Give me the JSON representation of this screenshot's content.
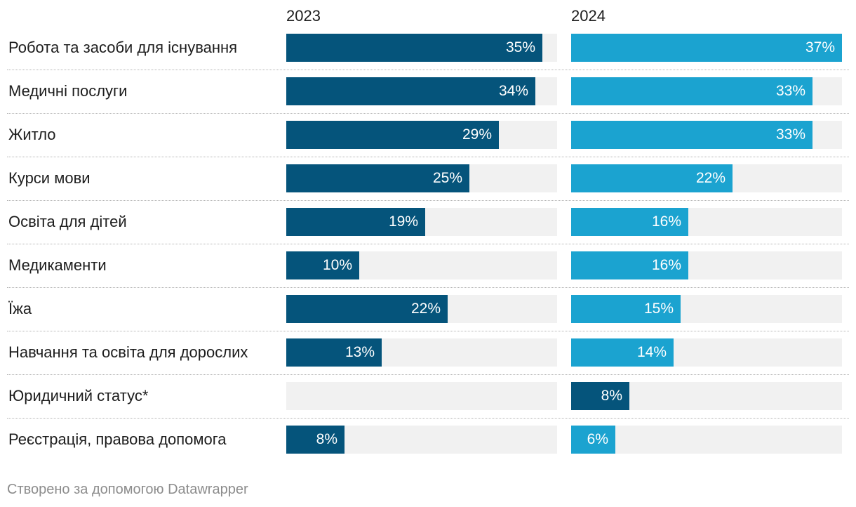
{
  "chart_data": {
    "type": "bar",
    "orientation": "horizontal",
    "categories": [
      "Робота та засоби для існування",
      "Медичні послуги",
      "Житло",
      "Курси мови",
      "Освіта для дітей",
      "Медикаменти",
      "Їжа",
      "Навчання та освіта для дорослих",
      "Юридичний статус*",
      "Реєстрація, правова допомога"
    ],
    "series": [
      {
        "name": "2023",
        "values": [
          35,
          34,
          29,
          25,
          19,
          10,
          22,
          13,
          null,
          8
        ],
        "labels": [
          "35%",
          "34%",
          "29%",
          "25%",
          "19%",
          "10%",
          "22%",
          "13%",
          "",
          "8%"
        ],
        "color": "#05547b"
      },
      {
        "name": "2024",
        "values": [
          37,
          33,
          33,
          22,
          16,
          16,
          15,
          14,
          8,
          6
        ],
        "labels": [
          "37%",
          "33%",
          "33%",
          "22%",
          "16%",
          "16%",
          "15%",
          "14%",
          "8%",
          "6%"
        ],
        "color": "#1ba3d0",
        "highlight_color": "#05547b",
        "highlight_index": 8
      }
    ],
    "xlim": [
      0,
      37
    ],
    "track_color": "#f1f1f1",
    "grid": false,
    "legend": "column titles on top"
  },
  "footer": {
    "credit": "Створено за допомогою Datawrapper"
  }
}
